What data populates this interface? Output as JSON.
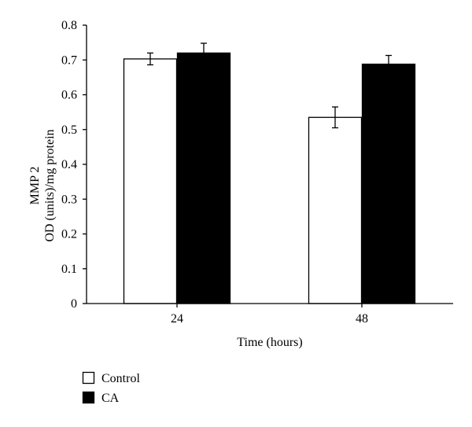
{
  "chart_data": {
    "type": "bar",
    "categories": [
      "24",
      "48"
    ],
    "series": [
      {
        "name": "Control",
        "values": [
          0.703,
          0.535
        ],
        "errors": [
          0.017,
          0.03
        ],
        "color": "#ffffff"
      },
      {
        "name": "CA",
        "values": [
          0.72,
          0.688
        ],
        "errors": [
          0.028,
          0.025
        ],
        "color": "#000000"
      }
    ],
    "ylim": [
      0,
      0.8
    ],
    "yticks": [
      "0",
      "0.1",
      "0.2",
      "0.3",
      "0.4",
      "0.5",
      "0.6",
      "0.7",
      "0.8"
    ],
    "xlabel": "Time (hours)",
    "ylabel_line1": "MMP 2",
    "ylabel_line2": "OD (units)/mg protein",
    "legend_position": "bottom-left",
    "grid": false
  }
}
